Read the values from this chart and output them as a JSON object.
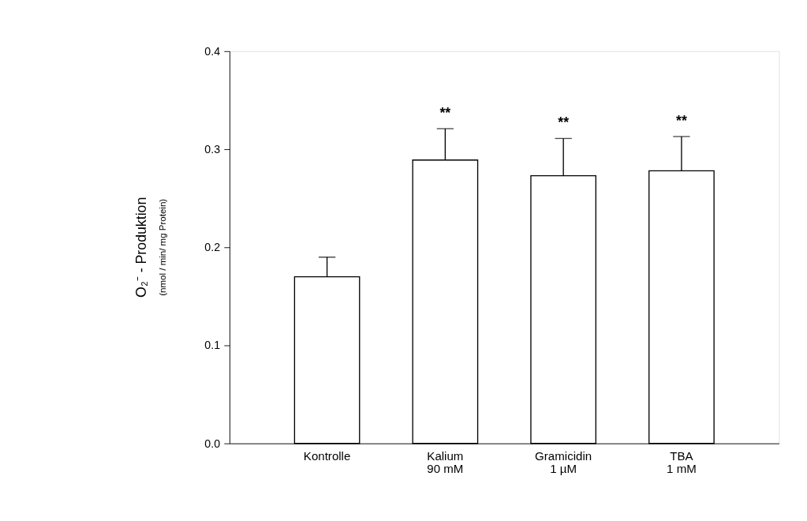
{
  "chart_data": {
    "type": "bar",
    "categories": [
      "Kontrolle",
      "Kalium\n90 mM",
      "Gramicidin\n1 µM",
      "TBA\n1 mM"
    ],
    "values": [
      0.17,
      0.289,
      0.273,
      0.278
    ],
    "errors": [
      0.02,
      0.032,
      0.038,
      0.035
    ],
    "color": "#ffffff",
    "ylabel": "O₂⁻ - Produktion\n(nmol / min/ mg Protein)",
    "ylim": [
      0,
      0.4
    ],
    "yticks": [
      {
        "value": 0,
        "label": "0.0"
      },
      {
        "value": 0.1,
        "label": "0.1"
      },
      {
        "value": 0.2,
        "label": "0.2"
      },
      {
        "value": 0.3,
        "label": "0.3"
      },
      {
        "value": 0.4,
        "label": "0.4"
      }
    ],
    "value_labels": [
      null,
      "**",
      "**",
      "**"
    ],
    "grid": false
  }
}
